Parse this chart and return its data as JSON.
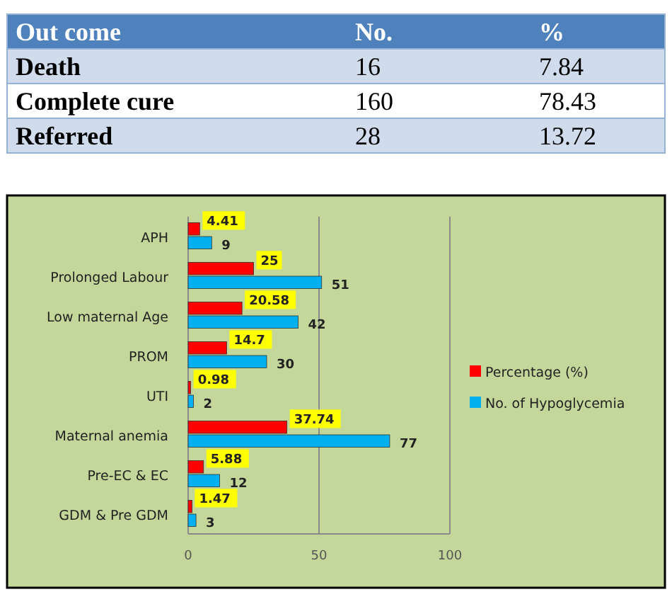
{
  "chart_data": [
    {
      "type": "other",
      "xlabel": "Out come",
      "categories": [
        "Death",
        "Complete cure",
        "Referred"
      ],
      "data_labels": true,
      "series": [
        {
          "name": "No.",
          "colors": [
            "#d0dcec",
            "#ffffff",
            "#d0dcec"
          ],
          "values": [
            16,
            160,
            28
          ]
        },
        {
          "name": "%",
          "values": [
            7.84,
            78.43,
            13.72
          ]
        }
      ]
    },
    {
      "type": "bar",
      "orientation": "horizontal",
      "categories": [
        "APH",
        "Prolonged Labour",
        "Low maternal Age",
        "PROM",
        "UTI",
        "Maternal anemia",
        "Pre-EC & EC",
        "GDM & Pre GDM"
      ],
      "xlim": [
        0,
        100
      ],
      "xticks": [
        0,
        50,
        100
      ],
      "grid": "x",
      "legend": "right",
      "data_labels": true,
      "series": [
        {
          "name": "Percentage (%)",
          "color": "#ff0000",
          "values": [
            4.41,
            25,
            20.58,
            14.7,
            0.98,
            37.74,
            5.88,
            1.47
          ]
        },
        {
          "name": "No. of Hypoglycemia",
          "color": "#00b0f0",
          "values": [
            9,
            51,
            42,
            30,
            2,
            77,
            12,
            3
          ]
        }
      ]
    }
  ]
}
